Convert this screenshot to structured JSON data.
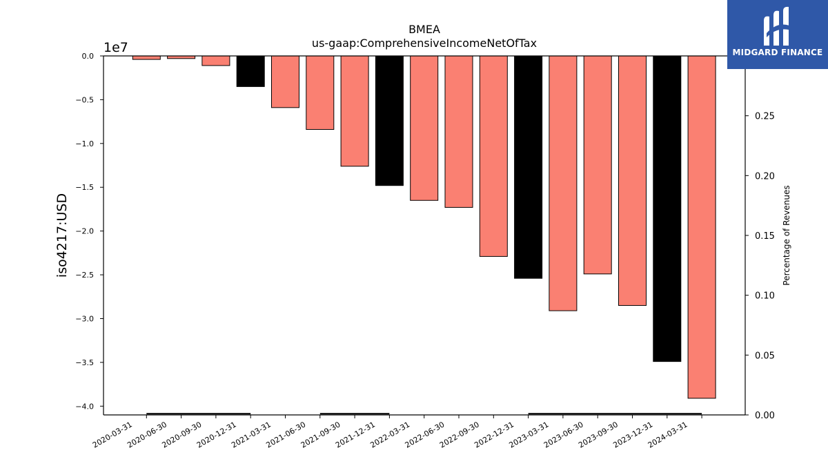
{
  "chart_data": {
    "type": "bar",
    "title": "BMEA",
    "subtitle": "us-gaap:ComprehensiveIncomeNetOfTax",
    "ylabel": "iso4217:USD",
    "y_offset_label": "1e7",
    "y2label": "Percentage of Revenues",
    "categories": [
      "2020-03-31",
      "2020-06-30",
      "2020-09-30",
      "2020-12-31",
      "2021-03-31",
      "2021-06-30",
      "2021-09-30",
      "2021-12-31",
      "2022-03-31",
      "2022-06-30",
      "2022-09-30",
      "2022-12-31",
      "2023-03-31",
      "2023-06-30",
      "2023-09-30",
      "2023-12-31",
      "2024-03-31"
    ],
    "values": [
      -400000,
      -300000,
      -1100000,
      -3500000,
      -5900000,
      -8400000,
      -12600000,
      -14800000,
      -16500000,
      -17300000,
      -22900000,
      -25400000,
      -29100000,
      -24900000,
      -28500000,
      -34900000,
      -39100000
    ],
    "bar_colors": [
      "#fa8072",
      "#fa8072",
      "#fa8072",
      "#000000",
      "#fa8072",
      "#fa8072",
      "#fa8072",
      "#000000",
      "#fa8072",
      "#fa8072",
      "#fa8072",
      "#000000",
      "#fa8072",
      "#fa8072",
      "#fa8072",
      "#000000",
      "#fa8072"
    ],
    "ylim": [
      -41000000,
      0
    ],
    "yticks": [
      0,
      -5000000,
      -10000000,
      -15000000,
      -20000000,
      -25000000,
      -30000000,
      -35000000,
      -40000000
    ],
    "ytick_labels": [
      "0.0",
      "−0.5",
      "−1.0",
      "−1.5",
      "−2.0",
      "−2.5",
      "−3.0",
      "−3.5",
      "−4.0"
    ],
    "y2lim": [
      0,
      0.3
    ],
    "y2ticks": [
      0,
      0.05,
      0.1,
      0.15,
      0.2,
      0.25
    ],
    "y2tick_labels": [
      "0.00",
      "0.05",
      "0.10",
      "0.15",
      "0.20",
      "0.25"
    ],
    "percentage_line": [
      {
        "from": 1,
        "to": 4,
        "value": 0.001
      },
      {
        "from": 6,
        "to": 8,
        "value": 0.001
      },
      {
        "from": 12,
        "to": 17,
        "value": 0.001
      }
    ],
    "grid": false
  },
  "logo": {
    "text": "MIDGARD FINANCE",
    "background": "#2f58a8",
    "icon": "midgard-logo-icon"
  }
}
